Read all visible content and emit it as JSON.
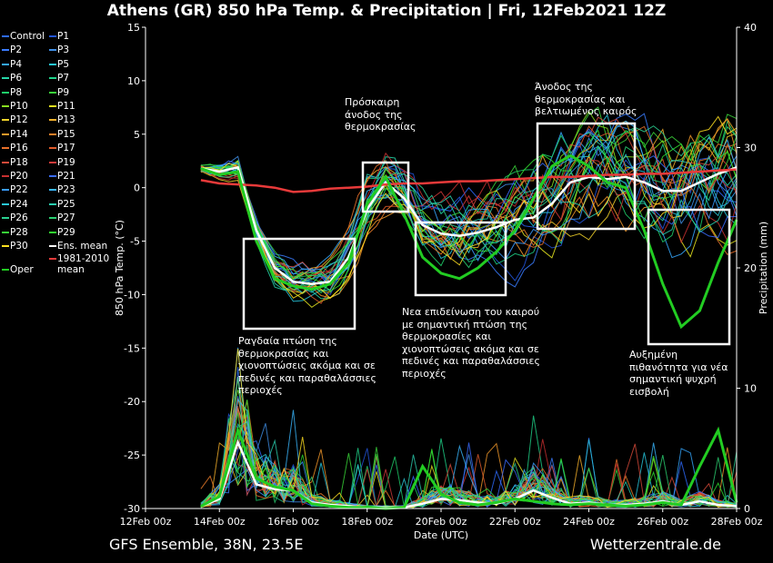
{
  "title": "Athens  (GR)  850 hPa Temp. & Precipitation | Fri, 12Feb2021 12Z",
  "footer": {
    "model": "GFS Ensemble, 38N, 23.5E",
    "site": "Wetterzentrale.de"
  },
  "colors": {
    "background": "#000000",
    "climatology": "#e83a3a",
    "ensemble_mean": "#ffffff",
    "oper": "#22cc22",
    "control": "#2e6bff",
    "annotation_box": "#ffffff"
  },
  "annotations": [
    "Ραγδαία πτώση της θερμοκρασίας και χιονοπτώσεις ακόμα και σε πεδινές και παραθαλάσσιες περιοχές",
    "Πρόσκαιρη άνοδος της θερμοκρασίας",
    "Νεα επιδείνωση του καιρού με σημαντική πτώση της θερμοκρασίες και χιονοπτώσεις ακόμα και σε πεδινές και παραθαλάσσιες περιοχές",
    "Άνοδος της θερμοκρασίας και βελτιωμένος καιρός",
    "Αυξημένη πιθανότητα για νέα σημαντική ψυχρή εισβολή"
  ],
  "legend": [
    {
      "label": "Control",
      "color": "#2e6bff"
    },
    {
      "label": "P1",
      "color": "#2255dd"
    },
    {
      "label": "P2",
      "color": "#3a7cff"
    },
    {
      "label": "P3",
      "color": "#3f8fe6"
    },
    {
      "label": "P4",
      "color": "#35a8ff"
    },
    {
      "label": "P5",
      "color": "#27c9e0"
    },
    {
      "label": "P6",
      "color": "#26d6a8"
    },
    {
      "label": "P7",
      "color": "#1fd48a"
    },
    {
      "label": "P8",
      "color": "#1fd06a"
    },
    {
      "label": "P9",
      "color": "#3ad43a"
    },
    {
      "label": "P10",
      "color": "#88e020"
    },
    {
      "label": "P11",
      "color": "#e6e620"
    },
    {
      "label": "P12",
      "color": "#f2d22a"
    },
    {
      "label": "P13",
      "color": "#f5b02a"
    },
    {
      "label": "P14",
      "color": "#f59a2a"
    },
    {
      "label": "P15",
      "color": "#f0802a"
    },
    {
      "label": "P16",
      "color": "#e8702a"
    },
    {
      "label": "P17",
      "color": "#e05a2a"
    },
    {
      "label": "P18",
      "color": "#d84a3a"
    },
    {
      "label": "P19",
      "color": "#d03a3a"
    },
    {
      "label": "P20",
      "color": "#c83030"
    },
    {
      "label": "P21",
      "color": "#3a6cff"
    },
    {
      "label": "P22",
      "color": "#3a9cff"
    },
    {
      "label": "P23",
      "color": "#3ab8ff"
    },
    {
      "label": "P24",
      "color": "#2ac8d8"
    },
    {
      "label": "P25",
      "color": "#2ad0b0"
    },
    {
      "label": "P26",
      "color": "#2ad090"
    },
    {
      "label": "P27",
      "color": "#2ad070"
    },
    {
      "label": "P28",
      "color": "#38d838"
    },
    {
      "label": "P29",
      "color": "#30e030"
    },
    {
      "label": "P30",
      "color": "#ffe020"
    },
    {
      "label": "Ens. mean",
      "color": "#ffffff"
    },
    {
      "label": "Oper",
      "color": "#22cc22"
    },
    {
      "label": "1981-2010 mean",
      "color": "#e83a3a"
    }
  ],
  "chart_data": {
    "type": "line",
    "xlabel": "Date (UTC)",
    "ylabel": "850 hPa Temp. (°C)",
    "y2label": "Precipitation (mm)",
    "x_ticks": [
      "12Feb 00z",
      "14Feb 00z",
      "16Feb 00z",
      "18Feb 00z",
      "20Feb 00z",
      "22Feb 00z",
      "24Feb 00z",
      "26Feb 00z",
      "28Feb 00z"
    ],
    "y_ticks": [
      15,
      10,
      5,
      0,
      -5,
      -10,
      -15,
      -20,
      -25,
      -30
    ],
    "y2_ticks": [
      40,
      30,
      20,
      10,
      0
    ],
    "xlim": [
      "12Feb 00z",
      "28Feb 00z"
    ],
    "ylim": [
      -30,
      15
    ],
    "y2lim": [
      0,
      40
    ],
    "grid": false,
    "series": [
      {
        "name": "Ens. mean",
        "values": [
          [
            13.5,
            1.8
          ],
          [
            14.0,
            1.5
          ],
          [
            14.5,
            1.9
          ],
          [
            15.0,
            -4.0
          ],
          [
            15.5,
            -7.5
          ],
          [
            16.0,
            -8.8
          ],
          [
            16.5,
            -9.0
          ],
          [
            17.0,
            -8.8
          ],
          [
            17.5,
            -6.5
          ],
          [
            18.0,
            -2.0
          ],
          [
            18.5,
            0.5
          ],
          [
            19.0,
            -1.0
          ],
          [
            19.5,
            -3.5
          ],
          [
            20.0,
            -4.3
          ],
          [
            20.5,
            -4.5
          ],
          [
            21.0,
            -4.2
          ],
          [
            21.5,
            -3.7
          ],
          [
            22.0,
            -3.0
          ],
          [
            22.5,
            -2.8
          ],
          [
            23.0,
            -1.5
          ],
          [
            23.5,
            0.5
          ],
          [
            24.0,
            1.0
          ],
          [
            24.5,
            0.8
          ],
          [
            25.0,
            1.0
          ],
          [
            25.5,
            0.5
          ],
          [
            26.0,
            -0.3
          ],
          [
            26.5,
            -0.3
          ],
          [
            27.0,
            0.5
          ],
          [
            27.5,
            1.3
          ],
          [
            28.0,
            1.9
          ]
        ]
      },
      {
        "name": "1981-2010 mean",
        "values": [
          [
            13.5,
            0.7
          ],
          [
            14.0,
            0.4
          ],
          [
            14.5,
            0.3
          ],
          [
            15.0,
            0.2
          ],
          [
            15.5,
            0.0
          ],
          [
            16.0,
            -0.4
          ],
          [
            16.5,
            -0.3
          ],
          [
            17.0,
            -0.1
          ],
          [
            17.5,
            0.0
          ],
          [
            18.0,
            0.1
          ],
          [
            18.5,
            0.3
          ],
          [
            19.0,
            0.4
          ],
          [
            19.5,
            0.4
          ],
          [
            20.0,
            0.5
          ],
          [
            20.5,
            0.6
          ],
          [
            21.0,
            0.6
          ],
          [
            21.5,
            0.7
          ],
          [
            22.0,
            0.8
          ],
          [
            22.5,
            0.9
          ],
          [
            23.0,
            1.0
          ],
          [
            23.5,
            1.0
          ],
          [
            24.0,
            1.1
          ],
          [
            24.5,
            1.2
          ],
          [
            25.0,
            1.2
          ],
          [
            25.5,
            1.3
          ],
          [
            26.0,
            1.3
          ],
          [
            26.5,
            1.4
          ],
          [
            27.0,
            1.5
          ],
          [
            27.5,
            1.6
          ],
          [
            28.0,
            1.7
          ]
        ]
      },
      {
        "name": "Oper",
        "values": [
          [
            13.5,
            1.8
          ],
          [
            14.0,
            1.2
          ],
          [
            14.5,
            1.5
          ],
          [
            15.0,
            -5.0
          ],
          [
            15.5,
            -8.5
          ],
          [
            16.0,
            -9.2
          ],
          [
            16.5,
            -9.5
          ],
          [
            17.0,
            -9.0
          ],
          [
            17.5,
            -7.0
          ],
          [
            18.0,
            -1.5
          ],
          [
            18.5,
            1.0
          ],
          [
            19.0,
            -2.5
          ],
          [
            19.5,
            -6.5
          ],
          [
            20.0,
            -8.0
          ],
          [
            20.5,
            -8.5
          ],
          [
            21.0,
            -7.5
          ],
          [
            21.5,
            -6.0
          ],
          [
            22.0,
            -4.0
          ],
          [
            22.5,
            -1.0
          ],
          [
            23.0,
            2.0
          ],
          [
            23.5,
            3.0
          ],
          [
            24.0,
            2.0
          ],
          [
            24.5,
            0.5
          ],
          [
            25.0,
            0.0
          ],
          [
            25.5,
            -4.0
          ],
          [
            26.0,
            -9.0
          ],
          [
            26.5,
            -13.0
          ],
          [
            27.0,
            -11.5
          ],
          [
            27.5,
            -7.0
          ],
          [
            28.0,
            -3.0
          ]
        ]
      }
    ],
    "precip_series": [
      {
        "name": "Ens. mean",
        "values": [
          [
            13.5,
            0.2
          ],
          [
            14.0,
            0.8
          ],
          [
            14.5,
            5.5
          ],
          [
            15.0,
            2.0
          ],
          [
            15.5,
            1.6
          ],
          [
            16.0,
            1.5
          ],
          [
            16.5,
            0.5
          ],
          [
            17.0,
            0.3
          ],
          [
            17.5,
            0.2
          ],
          [
            18.0,
            0.1
          ],
          [
            18.5,
            0.1
          ],
          [
            19.0,
            0.1
          ],
          [
            19.5,
            0.4
          ],
          [
            20.0,
            0.8
          ],
          [
            20.5,
            0.7
          ],
          [
            21.0,
            0.5
          ],
          [
            21.5,
            0.4
          ],
          [
            22.0,
            0.8
          ],
          [
            22.5,
            1.5
          ],
          [
            23.0,
            0.9
          ],
          [
            23.5,
            0.4
          ],
          [
            24.0,
            0.5
          ],
          [
            24.5,
            0.3
          ],
          [
            25.0,
            0.3
          ],
          [
            25.5,
            0.4
          ],
          [
            26.0,
            0.6
          ],
          [
            26.5,
            0.3
          ],
          [
            27.0,
            0.6
          ],
          [
            27.5,
            0.3
          ],
          [
            28.0,
            0.2
          ]
        ]
      },
      {
        "name": "Oper",
        "values": [
          [
            13.5,
            0.2
          ],
          [
            14.0,
            1.0
          ],
          [
            14.5,
            6.5
          ],
          [
            15.0,
            2.5
          ],
          [
            15.5,
            1.8
          ],
          [
            16.0,
            1.5
          ],
          [
            16.5,
            0.4
          ],
          [
            17.0,
            0.2
          ],
          [
            17.5,
            0.1
          ],
          [
            18.0,
            0.1
          ],
          [
            18.5,
            0.0
          ],
          [
            19.0,
            0.1
          ],
          [
            19.5,
            3.5
          ],
          [
            20.0,
            1.2
          ],
          [
            20.5,
            0.5
          ],
          [
            21.0,
            0.3
          ],
          [
            21.5,
            0.5
          ],
          [
            22.0,
            0.8
          ],
          [
            22.5,
            0.6
          ],
          [
            23.0,
            0.4
          ],
          [
            23.5,
            0.3
          ],
          [
            24.0,
            0.4
          ],
          [
            24.5,
            0.3
          ],
          [
            25.0,
            0.2
          ],
          [
            25.5,
            0.3
          ],
          [
            26.0,
            0.5
          ],
          [
            26.5,
            0.3
          ],
          [
            27.0,
            3.5
          ],
          [
            27.5,
            6.5
          ],
          [
            28.0,
            0.5
          ]
        ]
      }
    ]
  }
}
